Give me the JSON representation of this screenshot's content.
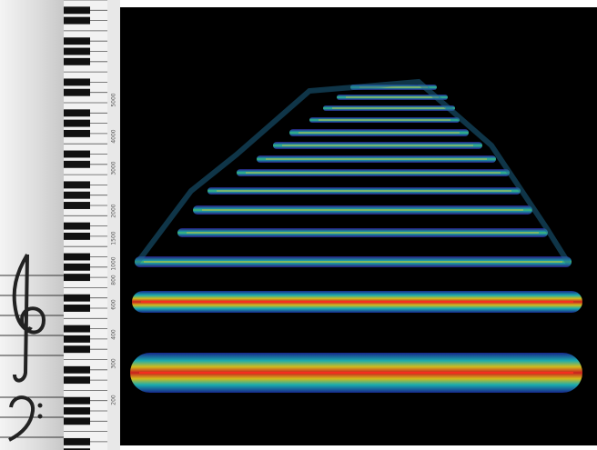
{
  "frequency_axis": {
    "labels": [
      "200",
      "300",
      "400",
      "600",
      "800",
      "1000",
      "1500",
      "2000",
      "3000",
      "4000",
      "5000"
    ]
  }
}
